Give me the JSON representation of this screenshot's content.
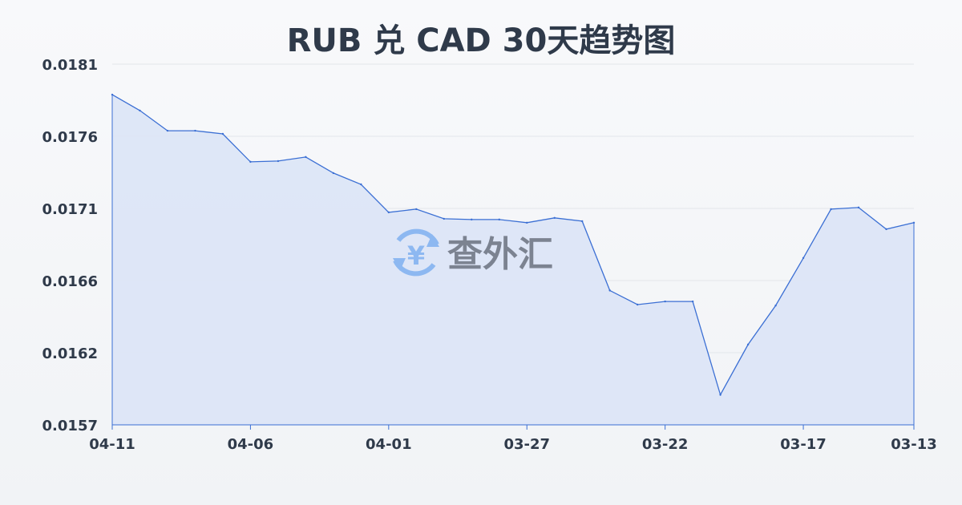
{
  "chart_data": {
    "type": "area",
    "title": "RUB 兑 CAD 30天趋势图",
    "xlabel": "",
    "ylabel": "",
    "x_ticks": [
      "04-11",
      "04-06",
      "04-01",
      "03-27",
      "03-22",
      "03-17",
      "03-13"
    ],
    "y_ticks": [
      "0.0157",
      "0.0162",
      "0.0166",
      "0.0171",
      "0.0176",
      "0.0181"
    ],
    "ylim": [
      0.0157,
      0.0181
    ],
    "grid": true,
    "x": [
      "04-11",
      "04-10",
      "04-09",
      "04-08",
      "04-07",
      "04-06",
      "04-05",
      "04-04",
      "04-03",
      "04-02",
      "04-01",
      "03-31",
      "03-30",
      "03-29",
      "03-28",
      "03-27",
      "03-26",
      "03-25",
      "03-24",
      "03-23",
      "03-22",
      "03-21",
      "03-20",
      "03-19",
      "03-18",
      "03-17",
      "03-16",
      "03-15",
      "03-14",
      "03-13"
    ],
    "values": [
      0.017897,
      0.017791,
      0.017657,
      0.017657,
      0.017636,
      0.01745,
      0.017455,
      0.017482,
      0.017375,
      0.0173,
      0.017114,
      0.017135,
      0.017071,
      0.017066,
      0.017066,
      0.017045,
      0.017077,
      0.017055,
      0.016594,
      0.0165,
      0.016521,
      0.016521,
      0.0159,
      0.016234,
      0.016494,
      0.01681,
      0.017135,
      0.017146,
      0.017002,
      0.017045
    ],
    "colors": {
      "line": "#3b6fd4",
      "fill": "#dbe4f6",
      "grid": "#e3e6ea"
    }
  },
  "watermark": {
    "text": "查外汇",
    "icon": "yen-exchange-icon"
  }
}
